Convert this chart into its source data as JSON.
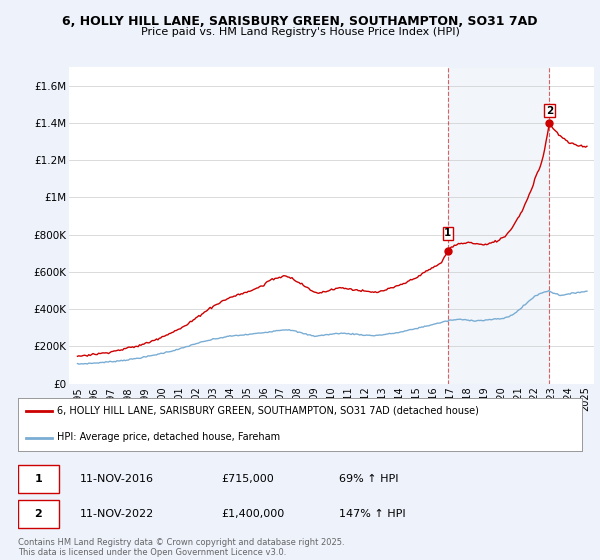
{
  "title": "6, HOLLY HILL LANE, SARISBURY GREEN, SOUTHAMPTON, SO31 7AD",
  "subtitle": "Price paid vs. HM Land Registry's House Price Index (HPI)",
  "background_color": "#eef2fb",
  "plot_bg_color": "#ffffff",
  "shade_color": "#dce8f5",
  "red_color": "#cc0000",
  "blue_color": "#7aadd4",
  "red_label": "6, HOLLY HILL LANE, SARISBURY GREEN, SOUTHAMPTON, SO31 7AD (detached house)",
  "blue_label": "HPI: Average price, detached house, Fareham",
  "sale1_date": "11-NOV-2016",
  "sale1_price": "£715,000",
  "sale1_hpi": "69% ↑ HPI",
  "sale1_x": 2016.87,
  "sale1_y": 715000,
  "sale2_date": "11-NOV-2022",
  "sale2_price": "£1,400,000",
  "sale2_hpi": "147% ↑ HPI",
  "sale2_x": 2022.87,
  "sale2_y": 1400000,
  "copyright": "Contains HM Land Registry data © Crown copyright and database right 2025.\nThis data is licensed under the Open Government Licence v3.0.",
  "ylim": [
    0,
    1700000
  ],
  "xlim": [
    1994.5,
    2025.5
  ],
  "yticks": [
    0,
    200000,
    400000,
    600000,
    800000,
    1000000,
    1200000,
    1400000,
    1600000
  ],
  "ytick_labels": [
    "£0",
    "£200K",
    "£400K",
    "£600K",
    "£800K",
    "£1M",
    "£1.2M",
    "£1.4M",
    "£1.6M"
  ],
  "xticks": [
    1995,
    1996,
    1997,
    1998,
    1999,
    2000,
    2001,
    2002,
    2003,
    2004,
    2005,
    2006,
    2007,
    2008,
    2009,
    2010,
    2011,
    2012,
    2013,
    2014,
    2015,
    2016,
    2017,
    2018,
    2019,
    2020,
    2021,
    2022,
    2023,
    2024,
    2025
  ]
}
